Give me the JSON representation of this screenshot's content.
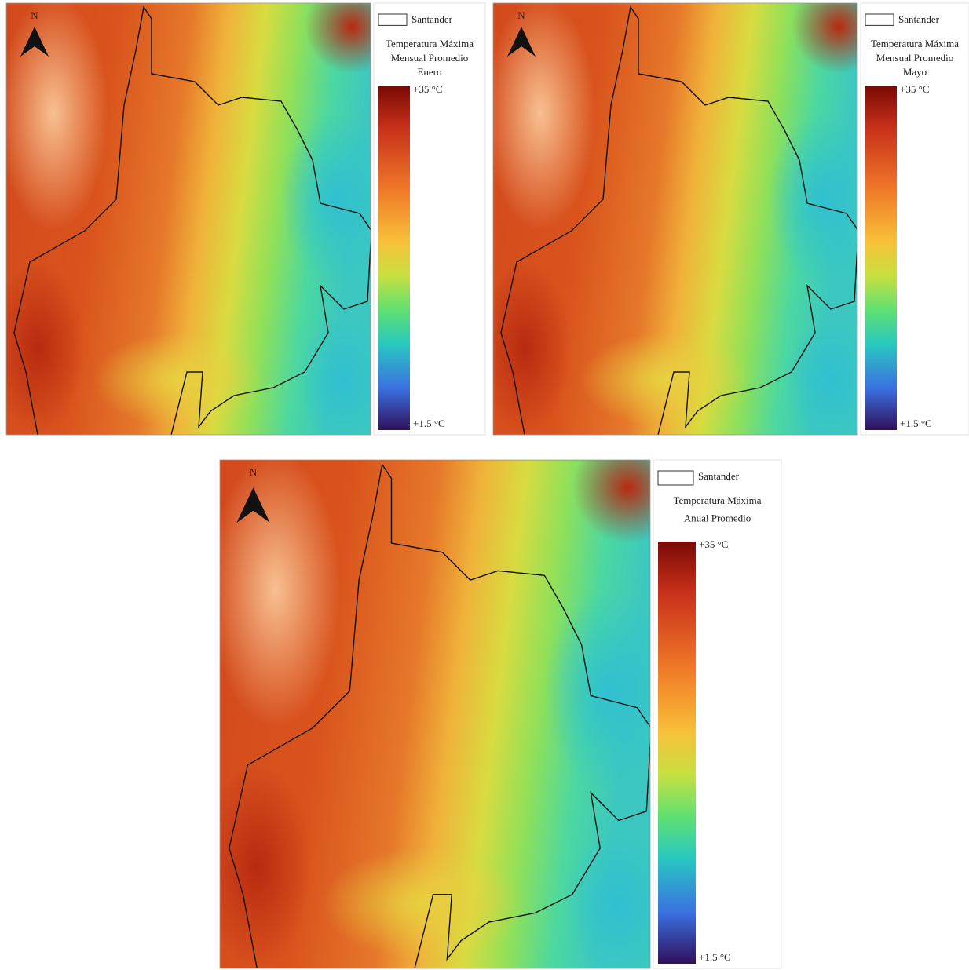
{
  "panels": [
    {
      "north": "N",
      "legend_label": "Santander",
      "title": [
        "Temperatura Máxima",
        "Mensual Promedio",
        "Enero"
      ],
      "max_label": "+35 °C",
      "min_label": "+1.5 °C"
    },
    {
      "north": "N",
      "legend_label": "Santander",
      "title": [
        "Temperatura Máxima",
        "Mensual Promedio",
        "Mayo"
      ],
      "max_label": "+35 °C",
      "min_label": "+1.5 °C"
    },
    {
      "north": "N",
      "legend_label": "Santander",
      "title": [
        "Temperatura Máxima",
        "Anual Promedio"
      ],
      "max_label": "+35 °C",
      "min_label": "+1.5 °C"
    }
  ]
}
